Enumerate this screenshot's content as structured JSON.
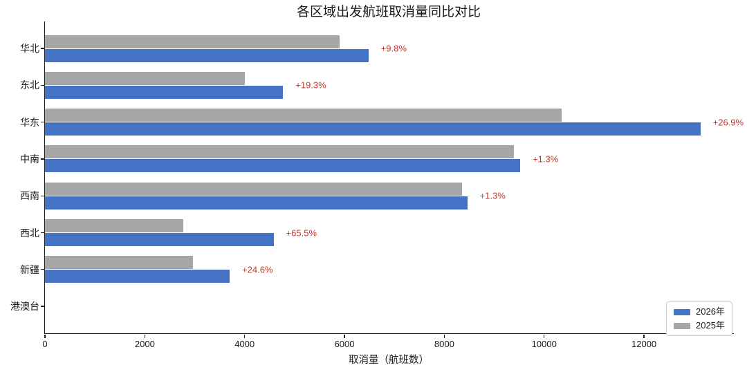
{
  "chart_data": {
    "type": "bar",
    "orientation": "horizontal",
    "title": "各区域出发航班取消量同比对比",
    "xlabel": "取消量（航班数）",
    "categories": [
      "华北",
      "东北",
      "华东",
      "中南",
      "西南",
      "西北",
      "新疆",
      "港澳台"
    ],
    "series": [
      {
        "name": "2026年",
        "color": "#4472C4",
        "values": [
          6480,
          4770,
          13130,
          9520,
          8460,
          4580,
          3700,
          0
        ]
      },
      {
        "name": "2025年",
        "color": "#A6A6A6",
        "values": [
          5900,
          4000,
          10350,
          9400,
          8350,
          2770,
          2970,
          0
        ]
      }
    ],
    "annotations": [
      "+9.8%",
      "+19.3%",
      "+26.9%",
      "+1.3%",
      "+1.3%",
      "+65.5%",
      "+24.6%",
      ""
    ],
    "annotation_color": "#C5392B",
    "axis_color": "#1a1a1a",
    "xticks": [
      0,
      2000,
      4000,
      6000,
      8000,
      10000,
      12000
    ],
    "xlim": [
      0,
      13800
    ],
    "grid": false,
    "legend_position": "lower-right"
  }
}
